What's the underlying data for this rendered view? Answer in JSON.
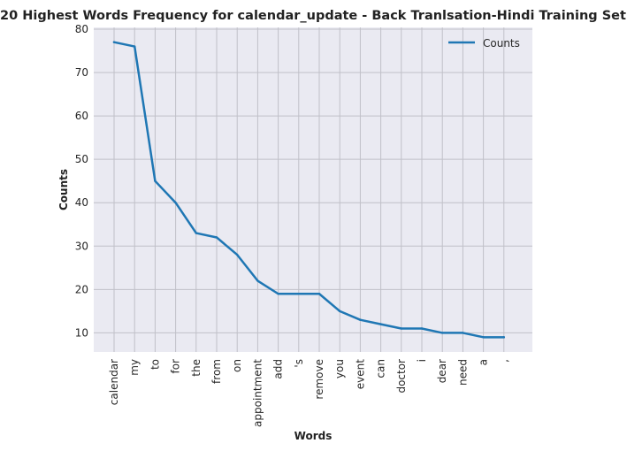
{
  "chart_data": {
    "type": "line",
    "title": "20 Highest Words Frequency for calendar_update - Back Tranlsation-Hindi Training Set",
    "xlabel": "Words",
    "ylabel": "Counts",
    "categories": [
      "calendar",
      "my",
      "to",
      "for",
      "the",
      "from",
      "on",
      "appointment",
      "add",
      "'s",
      "remove",
      "you",
      "event",
      "can",
      "doctor",
      "i",
      "dear",
      "need",
      "a",
      ","
    ],
    "series": [
      {
        "name": "Counts",
        "values": [
          77,
          76,
          45,
          40,
          33,
          32,
          28,
          22,
          19,
          19,
          19,
          15,
          13,
          12,
          11,
          11,
          10,
          10,
          9,
          9
        ]
      }
    ],
    "ylim": [
      5.6,
      80.4
    ],
    "yticks": [
      10,
      20,
      30,
      40,
      50,
      60,
      70,
      80
    ],
    "grid": true,
    "legend": "top-right",
    "colors": {
      "line": "#1f77b4",
      "plot_background": "#eaeaf2",
      "grid": "#c0c0c8"
    }
  }
}
